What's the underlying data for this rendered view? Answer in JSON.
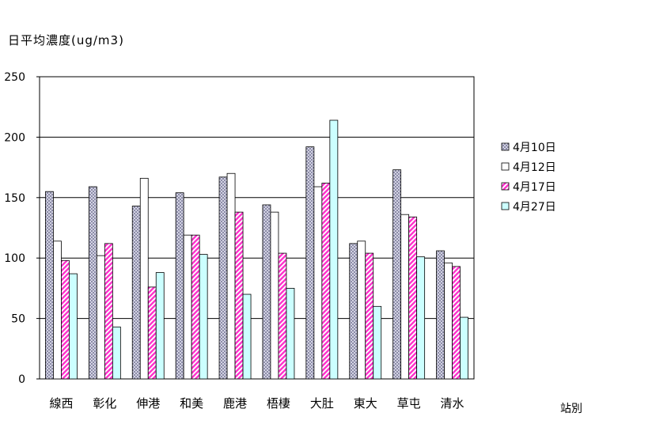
{
  "chart_data": {
    "type": "bar",
    "title": "",
    "ylabel": "日平均濃度(ug/m3)",
    "xlabel": "站別",
    "ylim": [
      0,
      250
    ],
    "yticks": [
      0,
      50,
      100,
      150,
      200,
      250
    ],
    "grid": "horizontal",
    "legend_position": "right",
    "categories": [
      "線西",
      "彰化",
      "伸港",
      "和美",
      "鹿港",
      "梧棲",
      "大肚",
      "東大",
      "草屯",
      "清水"
    ],
    "series": [
      {
        "name": "4月10日",
        "pattern": "crosshatch-gray",
        "color": "#c0c0d8",
        "values": [
          155,
          159,
          143,
          154,
          167,
          144,
          192,
          112,
          173,
          106
        ]
      },
      {
        "name": "4月12日",
        "pattern": "solid",
        "color": "#ffffff",
        "values": [
          114,
          102,
          166,
          119,
          170,
          138,
          159,
          114,
          136,
          96
        ]
      },
      {
        "name": "4月17日",
        "pattern": "diagonal-magenta",
        "color": "#ff33cc",
        "values": [
          98,
          112,
          76,
          119,
          138,
          104,
          162,
          104,
          134,
          93
        ]
      },
      {
        "name": "4月27日",
        "pattern": "solid",
        "color": "#ccffff",
        "values": [
          87,
          43,
          88,
          103,
          70,
          75,
          214,
          60,
          101,
          51
        ]
      }
    ]
  }
}
